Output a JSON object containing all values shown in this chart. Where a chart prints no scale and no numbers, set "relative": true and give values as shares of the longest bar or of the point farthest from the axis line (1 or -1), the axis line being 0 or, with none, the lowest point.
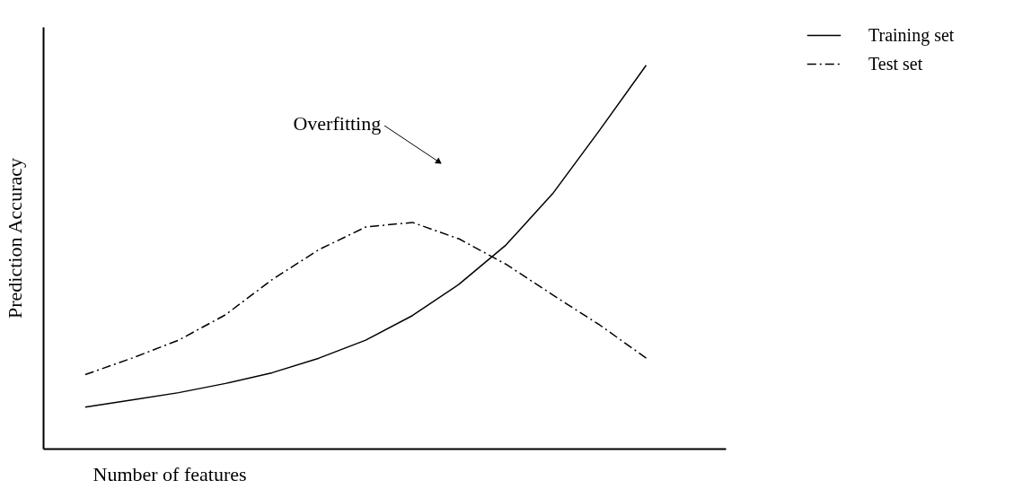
{
  "chart_data": {
    "type": "line",
    "relative": true,
    "xlabel": "Number of features",
    "ylabel": "Prediction Accuracy",
    "categories": [
      null,
      null,
      null,
      null,
      null,
      null,
      null,
      null,
      null,
      null,
      null,
      null,
      null
    ],
    "series": [
      {
        "name": "Training set",
        "color": "#000000",
        "line_style": "solid",
        "values": [
          0.108,
          0.127,
          0.146,
          0.17,
          0.198,
          0.236,
          0.283,
          0.347,
          0.429,
          0.531,
          0.665,
          0.83,
          1
        ]
      },
      {
        "name": "Test set",
        "color": "#000000",
        "line_style": "dashed",
        "values": [
          0.193,
          0.236,
          0.283,
          0.349,
          0.441,
          0.519,
          0.578,
          0.59,
          0.547,
          0.481,
          0.401,
          0.323,
          0.236
        ]
      }
    ],
    "annotations": [
      "Overfitting"
    ],
    "legend": "top right",
    "tick_labels": false,
    "marker": "none",
    "grid": false
  }
}
